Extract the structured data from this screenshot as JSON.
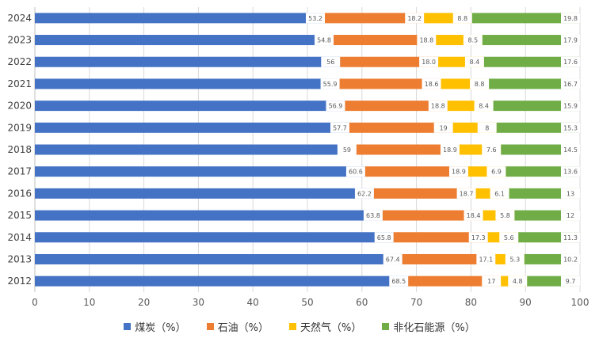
{
  "chart_data": {
    "type": "bar",
    "orientation": "horizontal",
    "stacked": true,
    "title": "",
    "xlabel": "",
    "ylabel": "",
    "xlim": [
      0,
      100
    ],
    "x_ticks": [
      "0",
      "10",
      "20",
      "30",
      "40",
      "50",
      "60",
      "70",
      "80",
      "90",
      "100"
    ],
    "grid": "vertical",
    "legend_position": "bottom",
    "categories": [
      "2024",
      "2023",
      "2022",
      "2021",
      "2020",
      "2019",
      "2018",
      "2017",
      "2016",
      "2015",
      "2014",
      "2013",
      "2012"
    ],
    "series": [
      {
        "name": "煤炭（%）",
        "color": "#4472C4",
        "values": [
          53.2,
          54.8,
          56,
          55.9,
          56.9,
          57.7,
          59,
          60.6,
          62.2,
          63.8,
          65.8,
          67.4,
          68.5
        ],
        "labels": [
          "53.2",
          "54.8",
          "56",
          "55.9",
          "56.9",
          "57.7",
          "59",
          "60.6",
          "62.2",
          "63.8",
          "65.8",
          "67.4",
          "68.5"
        ]
      },
      {
        "name": "石油（%）",
        "color": "#ED7D31",
        "values": [
          18.2,
          18.8,
          18,
          18.6,
          18.8,
          19,
          18.9,
          18.9,
          18.7,
          18.4,
          17.3,
          17.1,
          17
        ],
        "labels": [
          "18.2",
          "18.8",
          "18.0",
          "18.6",
          "18.8",
          "19",
          "18.9",
          "18.9",
          "18.7",
          "18.4",
          "17.3",
          "17.1",
          "17"
        ]
      },
      {
        "name": "天然气（%）",
        "color": "#FFC000",
        "values": [
          8.8,
          8.5,
          8.4,
          8.8,
          8.4,
          8,
          7.6,
          6.9,
          6.1,
          5.8,
          5.6,
          5.3,
          4.8
        ],
        "labels": [
          "8.8",
          "8.5",
          "8.4",
          "8.8",
          "8.4",
          "8",
          "7.6",
          "6.9",
          "6.1",
          "5.8",
          "5.6",
          "5.3",
          "4.8"
        ]
      },
      {
        "name": "非化石能源（%）",
        "color": "#70AD47",
        "values": [
          19.8,
          17.9,
          17.6,
          16.7,
          15.9,
          15.3,
          14.5,
          13.6,
          13,
          12,
          11.3,
          10.2,
          9.7
        ],
        "labels": [
          "19.8",
          "17.9",
          "17.6",
          "16.7",
          "15.9",
          "15.3",
          "14.5",
          "13.6",
          "13",
          "12",
          "11.3",
          "10.2",
          "9.7"
        ]
      }
    ]
  }
}
